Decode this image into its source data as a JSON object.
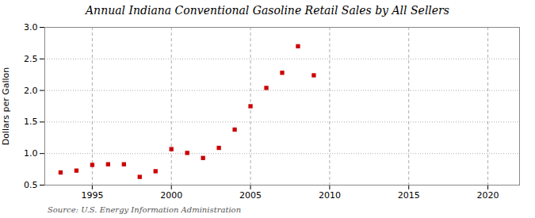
{
  "chart_data": {
    "type": "scatter",
    "title": "Annual Indiana Conventional Gasoline Retail Sales by All Sellers",
    "ylabel": "Dollars per Gallon",
    "source": "Source: U.S. Energy Information Administration",
    "x": [
      1993,
      1994,
      1995,
      1996,
      1997,
      1998,
      1999,
      2000,
      2001,
      2002,
      2003,
      2004,
      2005,
      2006,
      2007,
      2008,
      2009
    ],
    "values": [
      0.7,
      0.73,
      0.82,
      0.83,
      0.83,
      0.63,
      0.72,
      1.07,
      1.01,
      0.93,
      1.09,
      1.38,
      1.75,
      2.04,
      2.28,
      2.7,
      2.24
    ],
    "color": "#cc0000",
    "marker": "square",
    "xlim": [
      1992,
      2022
    ],
    "xticks": [
      1995,
      2000,
      2005,
      2010,
      2015,
      2020
    ],
    "ylim": [
      0.5,
      3.0
    ],
    "yticks": [
      0.5,
      {
        "value": 1,
        "label": "1.0"
      },
      1.5,
      {
        "value": 2,
        "label": "2.0"
      },
      2.5,
      {
        "value": 3,
        "label": "3.0"
      }
    ],
    "grid": true
  }
}
